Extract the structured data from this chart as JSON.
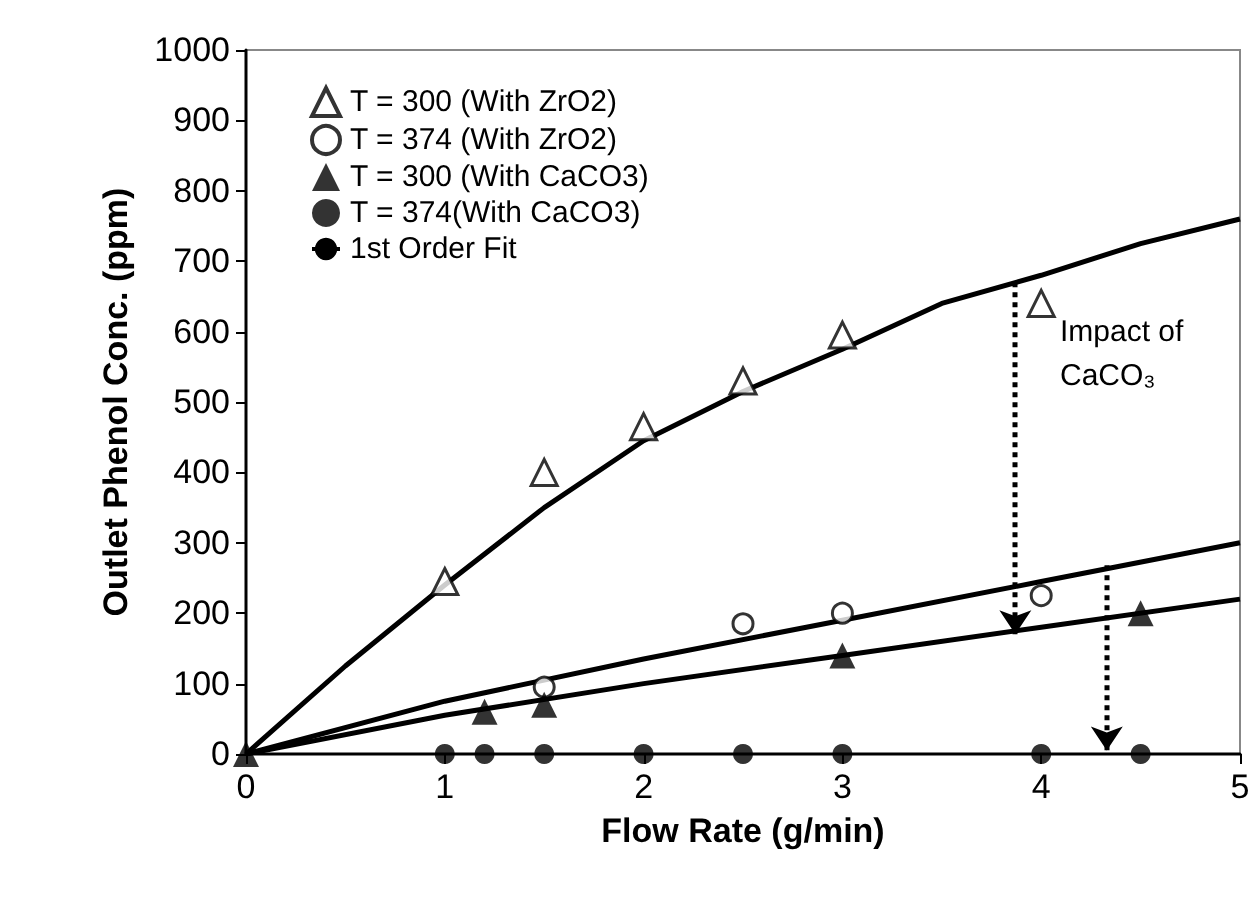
{
  "chart_data": {
    "type": "scatter",
    "xlabel": "Flow Rate (g/min)",
    "ylabel": "Outlet Phenol Conc. (ppm)",
    "xlim": [
      0,
      5
    ],
    "xticks": [
      0,
      1,
      2,
      3,
      4,
      5
    ],
    "ylim": [
      0,
      1000
    ],
    "yticks": [
      0,
      100,
      200,
      300,
      400,
      500,
      600,
      700,
      800,
      900,
      1000
    ],
    "grid": false,
    "legend": "top left",
    "annotations": [
      "Impact of CaCO₃"
    ],
    "series": [
      {
        "name": "T = 300 (With ZrO2)",
        "color": "#000000",
        "marker": "triangle-open",
        "x": [
          1,
          1.5,
          2,
          2.5,
          3,
          4
        ],
        "values": [
          245,
          400,
          465,
          530,
          595,
          640
        ]
      },
      {
        "name": "T = 374 (With ZrO2)",
        "color": "#000000",
        "marker": "circle-open",
        "x": [
          1.5,
          2.5,
          3,
          4
        ],
        "values": [
          95,
          185,
          200,
          225
        ]
      },
      {
        "name": "T = 300 (With CaCO3)",
        "color": "#000000",
        "marker": "triangle",
        "x": [
          0,
          1.2,
          1.5,
          3,
          4.5
        ],
        "values": [
          0,
          60,
          70,
          140,
          200
        ]
      },
      {
        "name": "T = 374(With CaCO3)",
        "color": "#000000",
        "marker": "circle",
        "x": [
          1,
          1.2,
          1.5,
          2,
          2.5,
          3,
          4,
          4.5
        ],
        "values": [
          0,
          0,
          0,
          0,
          0,
          0,
          0,
          0
        ]
      },
      {
        "name": "1st Order Fit",
        "type": "line",
        "color": "#000000",
        "marker": "none",
        "x": [
          0,
          0.5,
          1,
          1.5,
          2,
          2.5,
          3,
          3.5,
          4,
          4.5,
          5
        ],
        "values": [
          0,
          125,
          240,
          350,
          445,
          515,
          575,
          640,
          680,
          725,
          760
        ]
      },
      {
        "type": "line",
        "color": "#000000",
        "marker": "none",
        "x": [
          0,
          1,
          2,
          3,
          4,
          5
        ],
        "values": [
          0,
          75,
          135,
          190,
          245,
          300
        ]
      },
      {
        "type": "line",
        "color": "#000000",
        "marker": "none",
        "x": [
          0,
          1,
          2,
          3,
          4,
          5
        ],
        "values": [
          0,
          55,
          100,
          140,
          180,
          220
        ]
      }
    ]
  }
}
